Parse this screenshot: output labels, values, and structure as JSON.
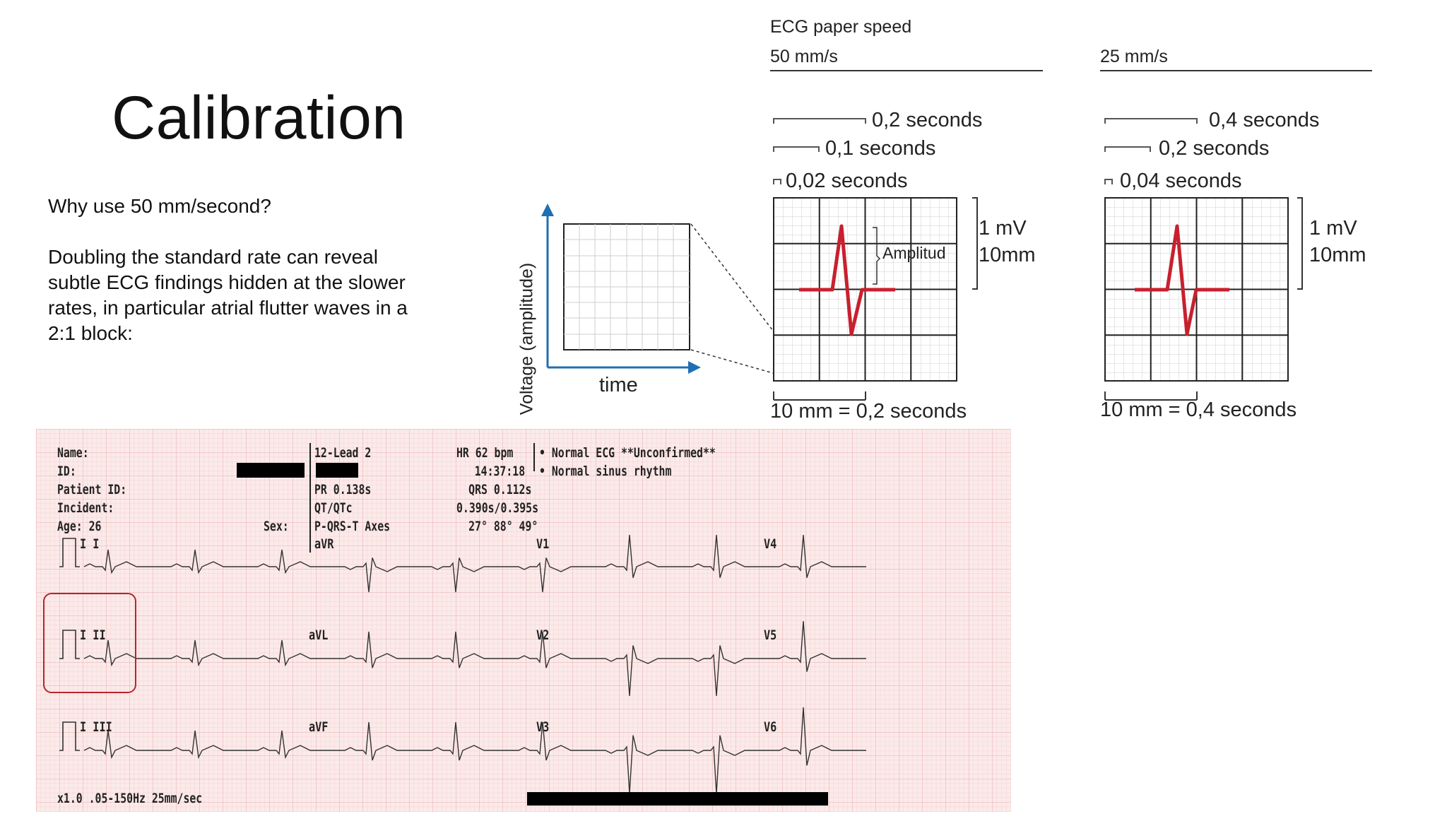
{
  "title": "Calibration",
  "question": "Why use 50 mm/second?",
  "explanation": "Doubling the standard rate can reveal subtle ECG findings hidden at the slower rates, in particular atrial flutter waves in a 2:1 block:",
  "speed_section": {
    "title": "ECG paper speed",
    "fast": {
      "speed": "50 mm/s",
      "durations": [
        "0,2 seconds",
        "0,1 seconds",
        "0,02 seconds"
      ],
      "amplitude_label": "Amplitud",
      "mv": "1 mV",
      "mm": "10mm",
      "bottom": "10 mm = 0,2 seconds"
    },
    "slow": {
      "speed": "25 mm/s",
      "durations": [
        "0,4 seconds",
        "0,2 seconds",
        "0,04 seconds"
      ],
      "mv": "1 mV",
      "mm": "10mm",
      "bottom": "10 mm = 0,4 seconds"
    }
  },
  "axes_diagram": {
    "ylabel": "Voltage (amplitude)",
    "xlabel": "time",
    "axis_color": "#1f6fb2"
  },
  "colors": {
    "waveform": "#c8202e",
    "highlight": "#b3262e",
    "ecg_bg": "#fbeaea",
    "ecg_grid": "#f0b9b9"
  },
  "ecg": {
    "name_label": "Name:",
    "id_label": "ID:",
    "patient_id_label": "Patient ID:",
    "incident_label": "Incident:",
    "age_label": "Age:",
    "age": "26",
    "sex_label": "Sex:",
    "device": "12-Lead 2",
    "pr": "PR 0.138s",
    "qt": "QT/QTc",
    "axes_label": "P-QRS-T Axes",
    "hr": "HR 62 bpm",
    "time": "14:37:18",
    "qrs": "QRS 0.112s",
    "qt_values": "0.390s/0.395s",
    "axis_values": "27° 88° 49°",
    "interpretation_1": "• Normal ECG **Unconfirmed**",
    "interpretation_2": "• Normal sinus rhythm",
    "footer": "x1.0 .05-150Hz 25mm/sec",
    "leads": {
      "row1": [
        "I I",
        "aVR",
        "V1",
        "V4"
      ],
      "row2": [
        "I II",
        "aVL",
        "V2",
        "V5"
      ],
      "row3": [
        "I III",
        "aVF",
        "V3",
        "V6"
      ]
    }
  }
}
